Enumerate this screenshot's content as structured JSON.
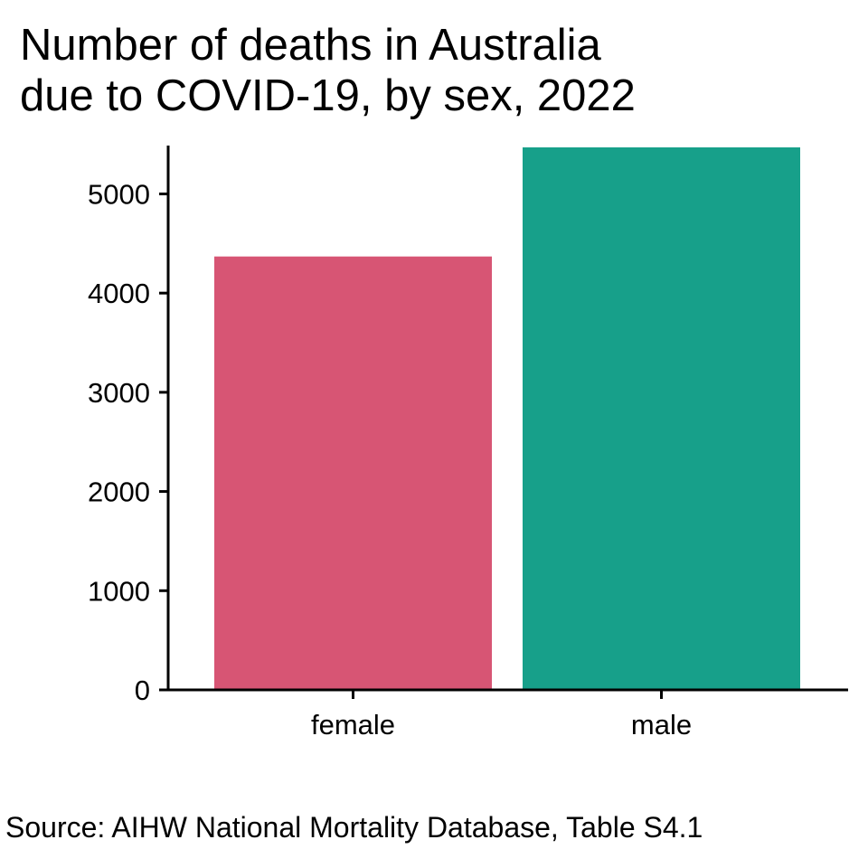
{
  "chart_data": {
    "type": "bar",
    "title_lines": [
      "Number of deaths in Australia",
      "due to COVID-19, by sex, 2022"
    ],
    "title": "Number of deaths in Australia due to COVID-19, by sex, 2022",
    "caption": "Source: AIHW National Mortality Database, Table S4.1",
    "xlabel": "",
    "ylabel": "",
    "categories": [
      "female",
      "male"
    ],
    "values": [
      4369,
      5469
    ],
    "colors": [
      "#D75574",
      "#17A08A"
    ],
    "ylim": [
      0,
      5469
    ],
    "yticks": [
      "0",
      "1000",
      "2000",
      "3000",
      "4000",
      "5000"
    ],
    "grid": false,
    "legend": "none"
  }
}
